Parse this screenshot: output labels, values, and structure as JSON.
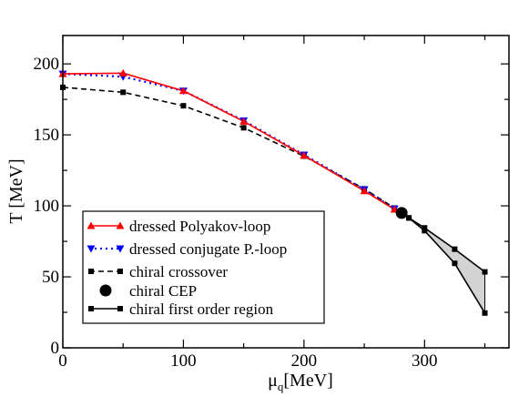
{
  "chart_data": {
    "type": "line",
    "xlabel_main": "μ",
    "xlabel_sub": "q",
    "xlabel_rest": "[MeV]",
    "ylabel": "T [MeV]",
    "xlim": [
      0,
      370
    ],
    "ylim": [
      0,
      220
    ],
    "xticks": [
      0,
      100,
      200,
      300
    ],
    "yticks": [
      0,
      50,
      100,
      150,
      200
    ],
    "xminor": 50,
    "yminor": 25,
    "grid": false,
    "legend_position": "lower-left",
    "series": [
      {
        "name": "dressed Polyakov-loop",
        "color": "#ff0000",
        "dash": "solid",
        "marker": "triangle-up",
        "x": [
          0,
          50,
          100,
          150,
          200,
          250,
          275
        ],
        "y": [
          193,
          193.5,
          181,
          159.5,
          135.5,
          110.5,
          97.5
        ]
      },
      {
        "name": "dressed conjugate P.-loop",
        "color": "#0000ff",
        "dash": "dotted",
        "marker": "triangle-down",
        "x": [
          0,
          50,
          100,
          150,
          200,
          250,
          275
        ],
        "y": [
          193,
          191,
          181,
          160,
          136,
          111.5,
          98
        ]
      },
      {
        "name": "chiral crossover",
        "color": "#000000",
        "dash": "dashed",
        "marker": "square",
        "x": [
          0,
          50,
          100,
          150,
          200,
          250,
          275
        ],
        "y": [
          183.5,
          180,
          170.5,
          155,
          135,
          112,
          98.5
        ]
      },
      {
        "name": "chiral CEP",
        "color": "#000000",
        "dash": "none",
        "marker": "circle",
        "x": [
          281
        ],
        "y": [
          95
        ]
      },
      {
        "name": "chiral first order region",
        "color": "#000000",
        "dash": "solid",
        "marker": "square",
        "shade": "#d3d3d3",
        "upper": {
          "x": [
            281,
            287,
            300,
            325,
            350
          ],
          "y": [
            95,
            91.5,
            84.5,
            69.5,
            53.5
          ]
        },
        "lower": {
          "x": [
            281,
            287,
            300,
            325,
            350
          ],
          "y": [
            95,
            91.5,
            82.5,
            59.5,
            24.5
          ]
        }
      }
    ]
  }
}
